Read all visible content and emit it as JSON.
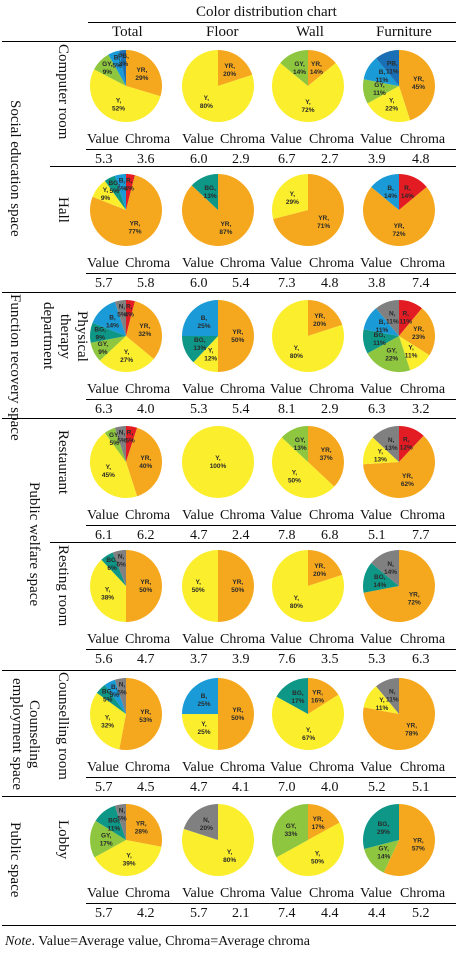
{
  "header": {
    "title": "Color distribution chart",
    "columns": [
      "Total",
      "Floor",
      "Wall",
      "Furniture"
    ]
  },
  "value_label": "Value",
  "chroma_label": "Chroma",
  "colors": {
    "R": "#e31b23",
    "YR": "#f5a81e",
    "Y": "#fbee2c",
    "GY": "#8ec63f",
    "BG": "#0e9686",
    "B": "#1a9ad6",
    "PB": "#1a6fb5",
    "N": "#808080"
  },
  "groups": [
    {
      "label": "Social education space",
      "rooms": [
        0,
        1
      ]
    },
    {
      "label": "Function recovery space",
      "rooms": [
        2
      ]
    },
    {
      "label": "Public welfare space",
      "rooms": [
        3,
        4
      ]
    },
    {
      "label": "Counseling employment space",
      "rooms": [
        5
      ]
    },
    {
      "label": "Public space",
      "rooms": [
        6
      ]
    }
  ],
  "rooms": [
    {
      "name": "Computer room",
      "stats": [
        [
          "5.3",
          "3.6"
        ],
        [
          "6.0",
          "2.9"
        ],
        [
          "6.7",
          "2.7"
        ],
        [
          "3.9",
          "4.8"
        ]
      ]
    },
    {
      "name": "Hall",
      "stats": [
        [
          "5.7",
          "5.8"
        ],
        [
          "6.0",
          "5.4"
        ],
        [
          "7.3",
          "4.8"
        ],
        [
          "3.8",
          "7.4"
        ]
      ]
    },
    {
      "name": "Physical therapy department",
      "stats": [
        [
          "6.3",
          "4.0"
        ],
        [
          "5.3",
          "5.4"
        ],
        [
          "8.1",
          "2.9"
        ],
        [
          "6.3",
          "3.2"
        ]
      ]
    },
    {
      "name": "Restaurant",
      "stats": [
        [
          "6.1",
          "6.2"
        ],
        [
          "4.7",
          "2.4"
        ],
        [
          "7.8",
          "6.8"
        ],
        [
          "5.1",
          "7.7"
        ]
      ]
    },
    {
      "name": "Resting room",
      "stats": [
        [
          "5.6",
          "4.7"
        ],
        [
          "3.7",
          "3.9"
        ],
        [
          "7.6",
          "3.5"
        ],
        [
          "5.3",
          "6.3"
        ]
      ]
    },
    {
      "name": "Counselling room",
      "stats": [
        [
          "5.7",
          "4.5"
        ],
        [
          "4.7",
          "4.1"
        ],
        [
          "7.0",
          "4.0"
        ],
        [
          "5.2",
          "5.1"
        ]
      ]
    },
    {
      "name": "Lobby",
      "stats": [
        [
          "5.7",
          "4.2"
        ],
        [
          "5.7",
          "2.1"
        ],
        [
          "7.4",
          "4.4"
        ],
        [
          "4.4",
          "5.2"
        ]
      ]
    }
  ],
  "note_prefix": "Note",
  "note_text": ". Value=Average value, Chroma=Average chroma",
  "chart_data": [
    {
      "type": "pie",
      "room": "Computer room",
      "column": "Total",
      "slices": [
        {
          "label": "YR",
          "value": 29
        },
        {
          "label": "Y",
          "value": 52
        },
        {
          "label": "GY",
          "value": 9
        },
        {
          "label": "B",
          "value": 5
        },
        {
          "label": "PB",
          "value": 3
        }
      ]
    },
    {
      "type": "pie",
      "room": "Computer room",
      "column": "Floor",
      "slices": [
        {
          "label": "YR",
          "value": 20
        },
        {
          "label": "Y",
          "value": 80
        }
      ]
    },
    {
      "type": "pie",
      "room": "Computer room",
      "column": "Wall",
      "slices": [
        {
          "label": "YR",
          "value": 14
        },
        {
          "label": "Y",
          "value": 72
        },
        {
          "label": "GY",
          "value": 14
        }
      ]
    },
    {
      "type": "pie",
      "room": "Computer room",
      "column": "Furniture",
      "slices": [
        {
          "label": "YR",
          "value": 45
        },
        {
          "label": "Y",
          "value": 22
        },
        {
          "label": "GY",
          "value": 11
        },
        {
          "label": "B",
          "value": 11
        },
        {
          "label": "PB",
          "value": 11
        }
      ]
    },
    {
      "type": "pie",
      "room": "Hall",
      "column": "Total",
      "slices": [
        {
          "label": "R",
          "value": 4
        },
        {
          "label": "YR",
          "value": 77
        },
        {
          "label": "Y",
          "value": 9
        },
        {
          "label": "BG",
          "value": 5
        },
        {
          "label": "B",
          "value": 5
        }
      ]
    },
    {
      "type": "pie",
      "room": "Hall",
      "column": "Floor",
      "slices": [
        {
          "label": "YR",
          "value": 87
        },
        {
          "label": "BG",
          "value": 13
        }
      ]
    },
    {
      "type": "pie",
      "room": "Hall",
      "column": "Wall",
      "slices": [
        {
          "label": "YR",
          "value": 71
        },
        {
          "label": "Y",
          "value": 29
        }
      ]
    },
    {
      "type": "pie",
      "room": "Hall",
      "column": "Furniture",
      "slices": [
        {
          "label": "R",
          "value": 14
        },
        {
          "label": "YR",
          "value": 72
        },
        {
          "label": "B",
          "value": 14
        }
      ]
    },
    {
      "type": "pie",
      "room": "Physical therapy department",
      "column": "Total",
      "slices": [
        {
          "label": "R",
          "value": 4
        },
        {
          "label": "YR",
          "value": 32
        },
        {
          "label": "Y",
          "value": 27
        },
        {
          "label": "GY",
          "value": 9
        },
        {
          "label": "BG",
          "value": 9
        },
        {
          "label": "B",
          "value": 14
        },
        {
          "label": "N",
          "value": 5
        }
      ]
    },
    {
      "type": "pie",
      "room": "Physical therapy department",
      "column": "Floor",
      "slices": [
        {
          "label": "YR",
          "value": 50
        },
        {
          "label": "Y",
          "value": 12
        },
        {
          "label": "BG",
          "value": 13
        },
        {
          "label": "B",
          "value": 25
        }
      ]
    },
    {
      "type": "pie",
      "room": "Physical therapy department",
      "column": "Wall",
      "slices": [
        {
          "label": "YR",
          "value": 20
        },
        {
          "label": "Y",
          "value": 80
        }
      ]
    },
    {
      "type": "pie",
      "room": "Physical therapy department",
      "column": "Furniture",
      "slices": [
        {
          "label": "R",
          "value": 11
        },
        {
          "label": "YR",
          "value": 23
        },
        {
          "label": "Y",
          "value": 11
        },
        {
          "label": "GY",
          "value": 22
        },
        {
          "label": "BG",
          "value": 11
        },
        {
          "label": "B",
          "value": 11
        },
        {
          "label": "N",
          "value": 11
        }
      ]
    },
    {
      "type": "pie",
      "room": "Restaurant",
      "column": "Total",
      "slices": [
        {
          "label": "R",
          "value": 5
        },
        {
          "label": "YR",
          "value": 40
        },
        {
          "label": "Y",
          "value": 45
        },
        {
          "label": "GY",
          "value": 5
        },
        {
          "label": "N",
          "value": 5
        }
      ]
    },
    {
      "type": "pie",
      "room": "Restaurant",
      "column": "Floor",
      "slices": [
        {
          "label": "Y",
          "value": 100
        }
      ]
    },
    {
      "type": "pie",
      "room": "Restaurant",
      "column": "Wall",
      "slices": [
        {
          "label": "YR",
          "value": 37
        },
        {
          "label": "Y",
          "value": 50
        },
        {
          "label": "GY",
          "value": 13
        }
      ]
    },
    {
      "type": "pie",
      "room": "Restaurant",
      "column": "Furniture",
      "slices": [
        {
          "label": "R",
          "value": 12
        },
        {
          "label": "YR",
          "value": 62
        },
        {
          "label": "Y",
          "value": 13
        },
        {
          "label": "N",
          "value": 13
        }
      ]
    },
    {
      "type": "pie",
      "room": "Resting room",
      "column": "Total",
      "slices": [
        {
          "label": "YR",
          "value": 50
        },
        {
          "label": "Y",
          "value": 38
        },
        {
          "label": "BG",
          "value": 6
        },
        {
          "label": "N",
          "value": 6
        }
      ]
    },
    {
      "type": "pie",
      "room": "Resting room",
      "column": "Floor",
      "slices": [
        {
          "label": "YR",
          "value": 50
        },
        {
          "label": "Y",
          "value": 50
        }
      ]
    },
    {
      "type": "pie",
      "room": "Resting room",
      "column": "Wall",
      "slices": [
        {
          "label": "YR",
          "value": 20
        },
        {
          "label": "Y",
          "value": 80
        }
      ]
    },
    {
      "type": "pie",
      "room": "Resting room",
      "column": "Furniture",
      "slices": [
        {
          "label": "YR",
          "value": 72
        },
        {
          "label": "BG",
          "value": 14
        },
        {
          "label": "N",
          "value": 14
        }
      ]
    },
    {
      "type": "pie",
      "room": "Counselling room",
      "column": "Total",
      "slices": [
        {
          "label": "YR",
          "value": 53
        },
        {
          "label": "Y",
          "value": 32
        },
        {
          "label": "BG",
          "value": 5
        },
        {
          "label": "B",
          "value": 5
        },
        {
          "label": "N",
          "value": 5
        }
      ]
    },
    {
      "type": "pie",
      "room": "Counselling room",
      "column": "Floor",
      "slices": [
        {
          "label": "YR",
          "value": 50
        },
        {
          "label": "Y",
          "value": 25
        },
        {
          "label": "B",
          "value": 25
        }
      ]
    },
    {
      "type": "pie",
      "room": "Counselling room",
      "column": "Wall",
      "slices": [
        {
          "label": "YR",
          "value": 16
        },
        {
          "label": "Y",
          "value": 67
        },
        {
          "label": "BG",
          "value": 17
        }
      ]
    },
    {
      "type": "pie",
      "room": "Counselling room",
      "column": "Furniture",
      "slices": [
        {
          "label": "YR",
          "value": 78
        },
        {
          "label": "Y",
          "value": 11
        },
        {
          "label": "N",
          "value": 11
        }
      ]
    },
    {
      "type": "pie",
      "room": "Lobby",
      "column": "Total",
      "slices": [
        {
          "label": "YR",
          "value": 28
        },
        {
          "label": "Y",
          "value": 39
        },
        {
          "label": "GY",
          "value": 17
        },
        {
          "label": "BG",
          "value": 11
        },
        {
          "label": "N",
          "value": 5
        }
      ]
    },
    {
      "type": "pie",
      "room": "Lobby",
      "column": "Floor",
      "slices": [
        {
          "label": "Y",
          "value": 80
        },
        {
          "label": "N",
          "value": 20
        }
      ]
    },
    {
      "type": "pie",
      "room": "Lobby",
      "column": "Wall",
      "slices": [
        {
          "label": "YR",
          "value": 17
        },
        {
          "label": "Y",
          "value": 50
        },
        {
          "label": "GY",
          "value": 33
        }
      ]
    },
    {
      "type": "pie",
      "room": "Lobby",
      "column": "Furniture",
      "slices": [
        {
          "label": "YR",
          "value": 57
        },
        {
          "label": "GY",
          "value": 14
        },
        {
          "label": "BG",
          "value": 29
        }
      ]
    }
  ]
}
